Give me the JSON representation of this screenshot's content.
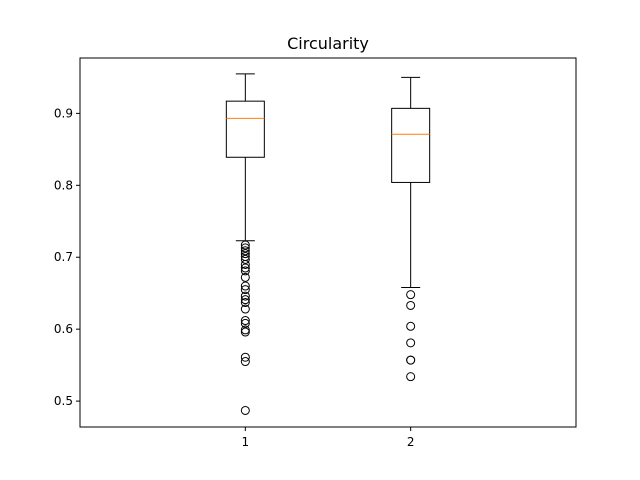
{
  "chart_data": {
    "type": "box",
    "title": "Circularity",
    "xlabel": "",
    "ylabel": "",
    "ylim": [
      0.464,
      0.977
    ],
    "yticks": [
      0.5,
      0.6,
      0.7,
      0.8,
      0.9
    ],
    "ytick_labels": [
      "0.5",
      "0.6",
      "0.7",
      "0.8",
      "0.9"
    ],
    "categories": [
      "1",
      "2"
    ],
    "grid": false,
    "colors": {
      "box": "#000000",
      "median": "#ff7f0e",
      "flier": "#000000"
    },
    "boxes": [
      {
        "label": "1",
        "whisker_low": 0.723,
        "q1": 0.839,
        "median": 0.893,
        "q3": 0.917,
        "whisker_high": 0.955,
        "fliers": [
          0.717,
          0.713,
          0.709,
          0.705,
          0.701,
          0.697,
          0.69,
          0.685,
          0.681,
          0.672,
          0.66,
          0.655,
          0.646,
          0.641,
          0.637,
          0.628,
          0.612,
          0.608,
          0.599,
          0.596,
          0.561,
          0.555,
          0.487
        ]
      },
      {
        "label": "2",
        "whisker_low": 0.658,
        "q1": 0.804,
        "median": 0.871,
        "q3": 0.907,
        "whisker_high": 0.95,
        "fliers": [
          0.648,
          0.633,
          0.604,
          0.581,
          0.557,
          0.557,
          0.534
        ]
      }
    ]
  }
}
